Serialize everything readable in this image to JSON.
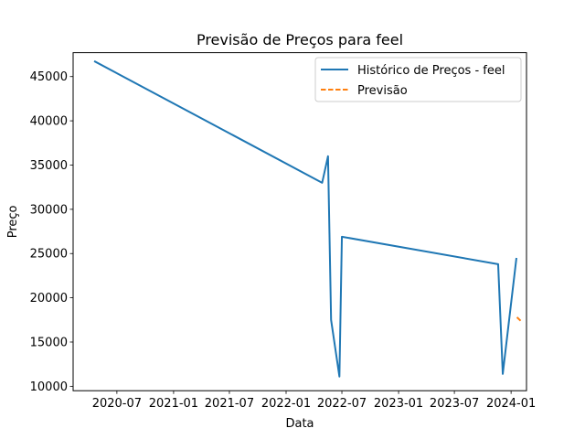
{
  "chart_data": {
    "type": "line",
    "title": "Previsão de Preços para feel",
    "xlabel": "Data",
    "ylabel": "Preço",
    "x_ticks": [
      "2020-07",
      "2021-01",
      "2021-07",
      "2022-01",
      "2022-07",
      "2023-01",
      "2023-07",
      "2024-01"
    ],
    "y_ticks": [
      10000,
      15000,
      20000,
      25000,
      30000,
      35000,
      40000,
      45000
    ],
    "xlim": [
      "2020-02-10",
      "2024-02-20"
    ],
    "ylim": [
      9500,
      47700
    ],
    "legend_position": "top-right",
    "grid": false,
    "series": [
      {
        "name": "Histórico de Preços - feel",
        "color": "#1f77b4",
        "style": "solid",
        "points": [
          {
            "x": "2020-04-21",
            "y": 46700
          },
          {
            "x": "2022-04-28",
            "y": 33000
          },
          {
            "x": "2022-05-17",
            "y": 36000
          },
          {
            "x": "2022-05-27",
            "y": 17500
          },
          {
            "x": "2022-06-23",
            "y": 11100
          },
          {
            "x": "2022-07-01",
            "y": 26900
          },
          {
            "x": "2023-11-20",
            "y": 23800
          },
          {
            "x": "2023-12-05",
            "y": 11400
          },
          {
            "x": "2024-01-18",
            "y": 24400
          }
        ]
      },
      {
        "name": "Previsão",
        "color": "#ff7f0e",
        "style": "dashed",
        "points": [
          {
            "x": "2024-01-20",
            "y": 17800
          },
          {
            "x": "2024-02-01",
            "y": 17400
          }
        ]
      }
    ]
  }
}
